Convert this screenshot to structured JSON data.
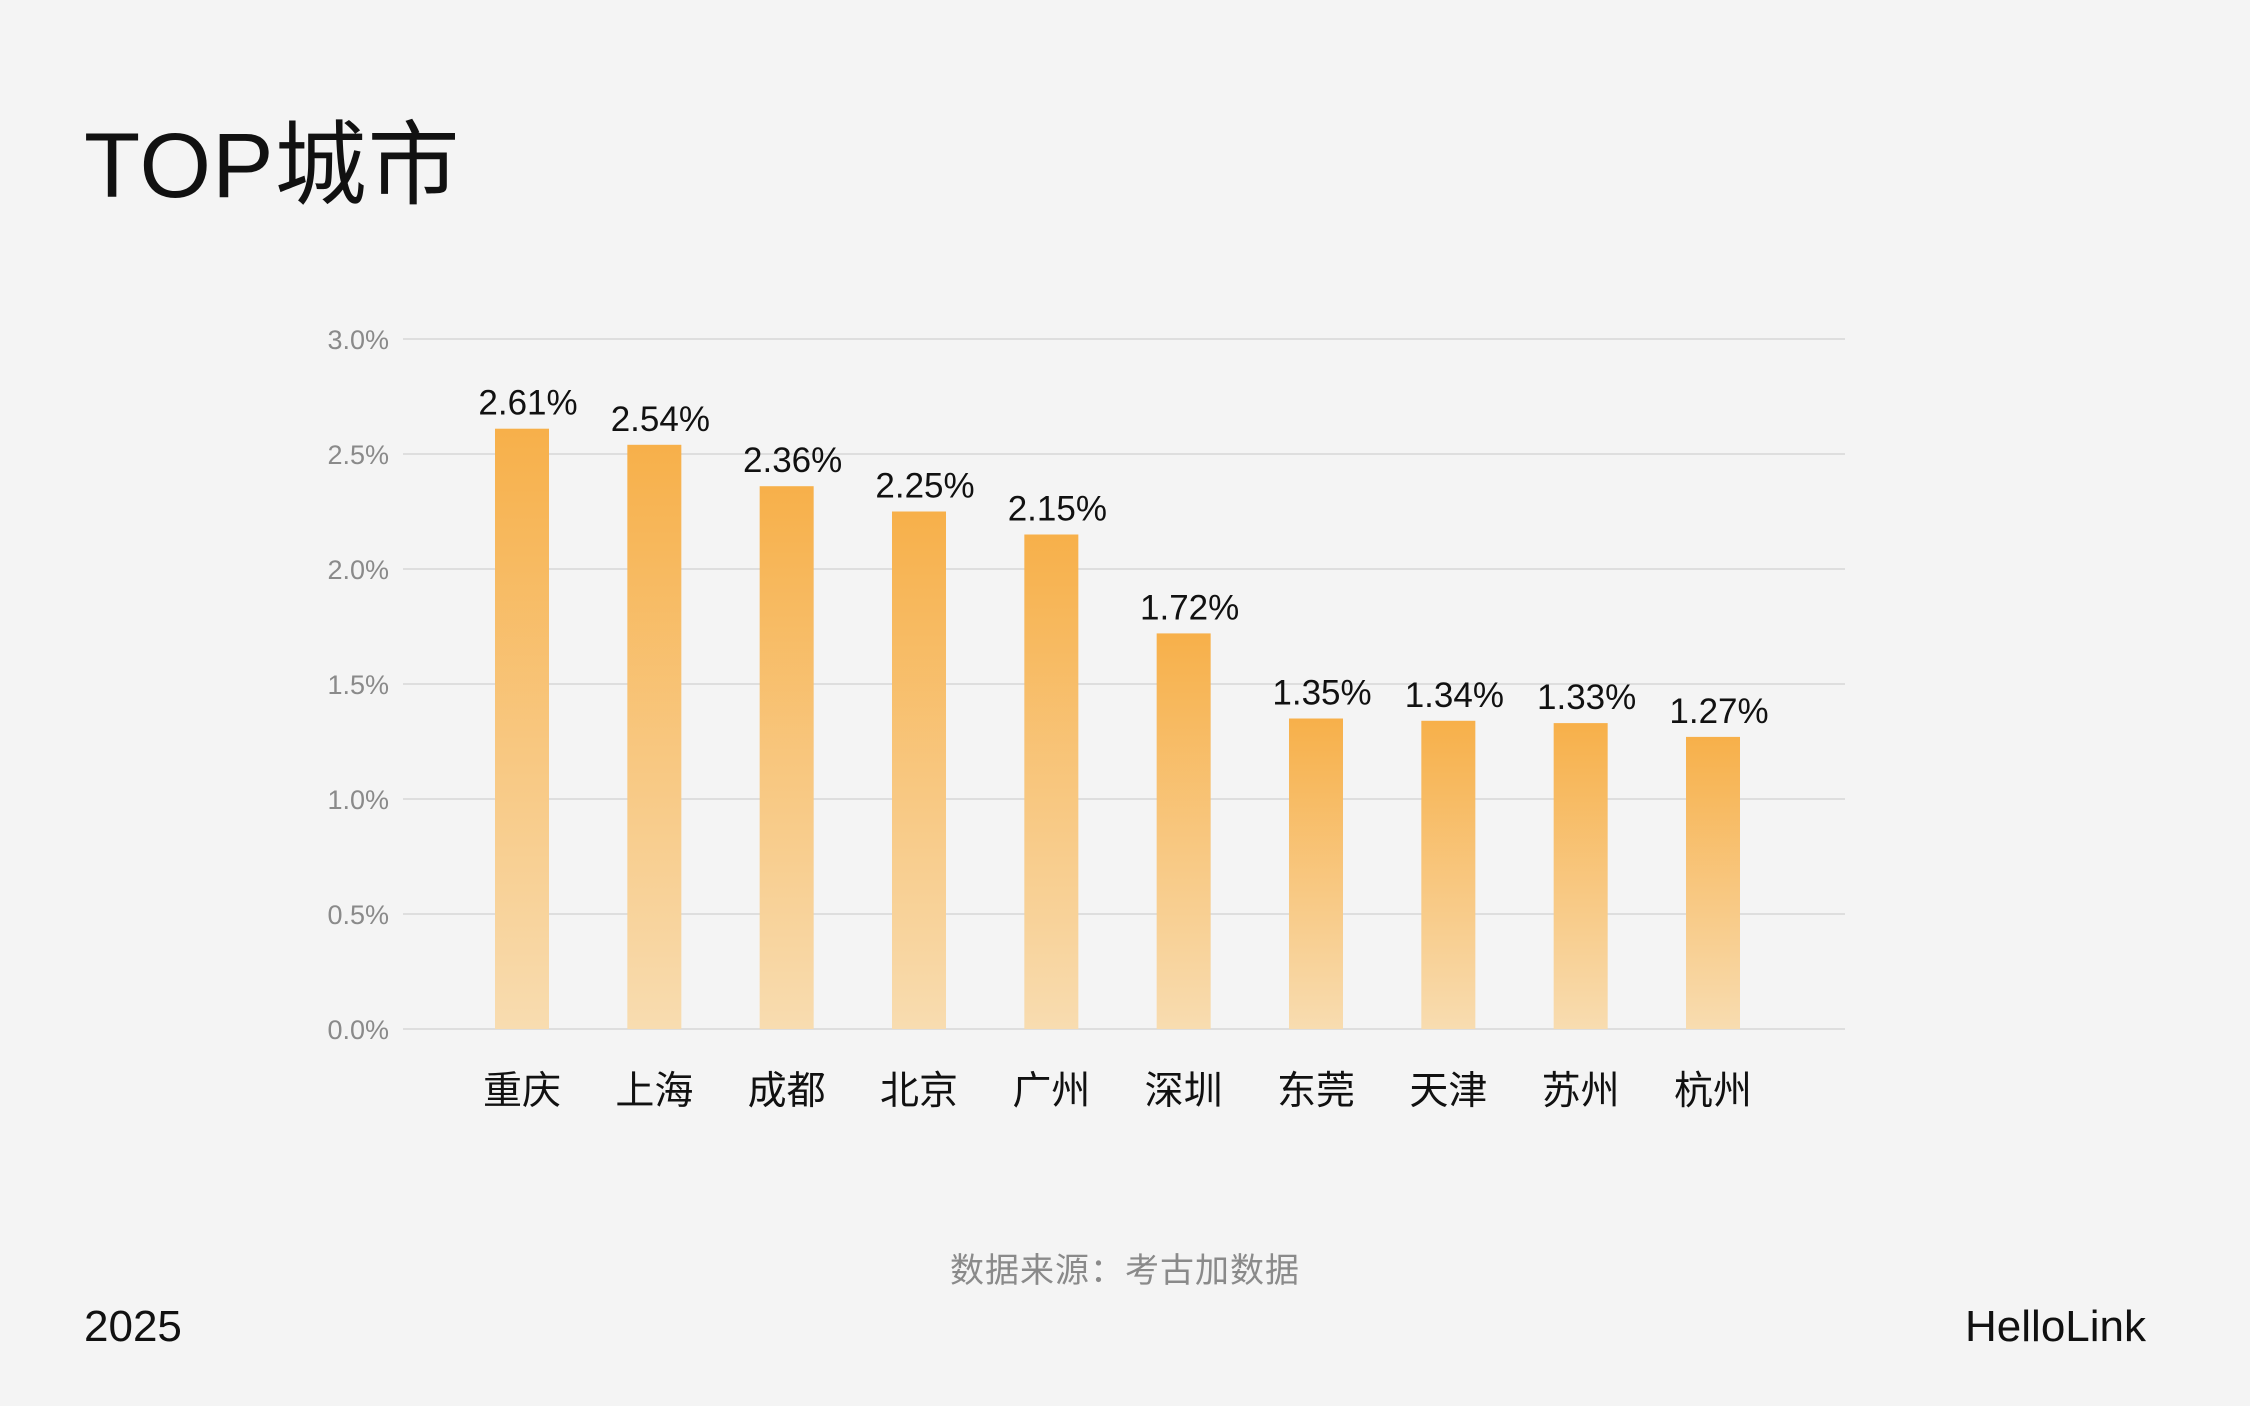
{
  "page": {
    "title": "TOP城市",
    "source": "数据来源：考古加数据",
    "year": "2025",
    "brand": "HelloLink"
  },
  "colors": {
    "bar_top": "#f7b04a",
    "bar_bottom": "#f8dcb0",
    "grid": "#d6d6d6",
    "tick_text": "#8a8a8a",
    "label_text": "#111111"
  },
  "chart_data": {
    "type": "bar",
    "categories": [
      "重庆",
      "上海",
      "成都",
      "北京",
      "广州",
      "深圳",
      "东莞",
      "天津",
      "苏州",
      "杭州"
    ],
    "values": [
      2.61,
      2.54,
      2.36,
      2.25,
      2.15,
      1.72,
      1.35,
      1.34,
      1.33,
      1.27
    ],
    "data_labels": [
      "2.61%",
      "2.54%",
      "2.36%",
      "2.25%",
      "2.15%",
      "1.72%",
      "1.35%",
      "1.34%",
      "1.33%",
      "1.27%"
    ],
    "ylim": [
      0,
      3
    ],
    "yticks": [
      0,
      0.5,
      1,
      1.5,
      2,
      2.5,
      3
    ],
    "ytick_labels": [
      "0.0%",
      "0.5%",
      "1.0%",
      "1.5%",
      "2.0%",
      "2.5%",
      "3.0%"
    ],
    "grid": true,
    "title": "",
    "xlabel": "",
    "ylabel": ""
  }
}
